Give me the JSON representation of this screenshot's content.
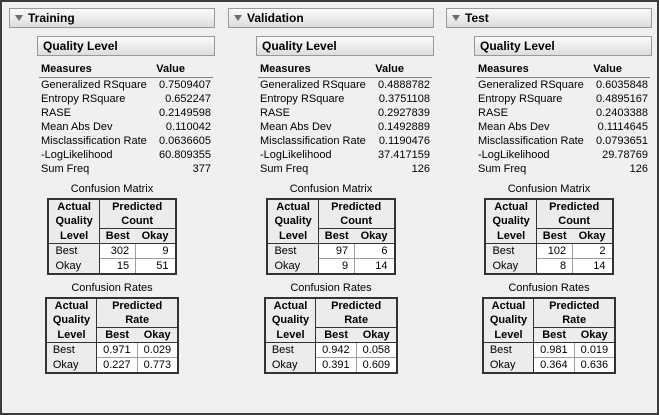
{
  "labels": {
    "section": "Quality Level",
    "measures": "Measures",
    "value": "Value",
    "confusion_matrix": "Confusion Matrix",
    "confusion_rates": "Confusion Rates",
    "actual": "Actual",
    "quality": "Quality",
    "level": "Level",
    "predicted": "Predicted",
    "count": "Count",
    "rate": "Rate",
    "best": "Best",
    "okay": "Okay"
  },
  "panels": [
    {
      "title": "Training",
      "measures": [
        {
          "name": "Generalized RSquare",
          "value": "0.7509407"
        },
        {
          "name": "Entropy RSquare",
          "value": "0.652247"
        },
        {
          "name": "RASE",
          "value": "0.2149598"
        },
        {
          "name": "Mean Abs Dev",
          "value": "0.110042"
        },
        {
          "name": "Misclassification Rate",
          "value": "0.0636605"
        },
        {
          "name": "-LogLikelihood",
          "value": "60.809355"
        },
        {
          "name": "Sum Freq",
          "value": "377"
        }
      ],
      "matrix_rows": [
        {
          "label": "Best",
          "best": "302",
          "okay": "9"
        },
        {
          "label": "Okay",
          "best": "15",
          "okay": "51"
        }
      ],
      "rate_rows": [
        {
          "label": "Best",
          "best": "0.971",
          "okay": "0.029"
        },
        {
          "label": "Okay",
          "best": "0.227",
          "okay": "0.773"
        }
      ]
    },
    {
      "title": "Validation",
      "measures": [
        {
          "name": "Generalized RSquare",
          "value": "0.4888782"
        },
        {
          "name": "Entropy RSquare",
          "value": "0.3751108"
        },
        {
          "name": "RASE",
          "value": "0.2927839"
        },
        {
          "name": "Mean Abs Dev",
          "value": "0.1492889"
        },
        {
          "name": "Misclassification Rate",
          "value": "0.1190476"
        },
        {
          "name": "-LogLikelihood",
          "value": "37.417159"
        },
        {
          "name": "Sum Freq",
          "value": "126"
        }
      ],
      "matrix_rows": [
        {
          "label": "Best",
          "best": "97",
          "okay": "6"
        },
        {
          "label": "Okay",
          "best": "9",
          "okay": "14"
        }
      ],
      "rate_rows": [
        {
          "label": "Best",
          "best": "0.942",
          "okay": "0.058"
        },
        {
          "label": "Okay",
          "best": "0.391",
          "okay": "0.609"
        }
      ]
    },
    {
      "title": "Test",
      "measures": [
        {
          "name": "Generalized RSquare",
          "value": "0.6035848"
        },
        {
          "name": "Entropy RSquare",
          "value": "0.4895167"
        },
        {
          "name": "RASE",
          "value": "0.2403388"
        },
        {
          "name": "Mean Abs Dev",
          "value": "0.1114645"
        },
        {
          "name": "Misclassification Rate",
          "value": "0.0793651"
        },
        {
          "name": "-LogLikelihood",
          "value": "29.78769"
        },
        {
          "name": "Sum Freq",
          "value": "126"
        }
      ],
      "matrix_rows": [
        {
          "label": "Best",
          "best": "102",
          "okay": "2"
        },
        {
          "label": "Okay",
          "best": "8",
          "okay": "14"
        }
      ],
      "rate_rows": [
        {
          "label": "Best",
          "best": "0.981",
          "okay": "0.019"
        },
        {
          "label": "Okay",
          "best": "0.364",
          "okay": "0.636"
        }
      ]
    }
  ]
}
